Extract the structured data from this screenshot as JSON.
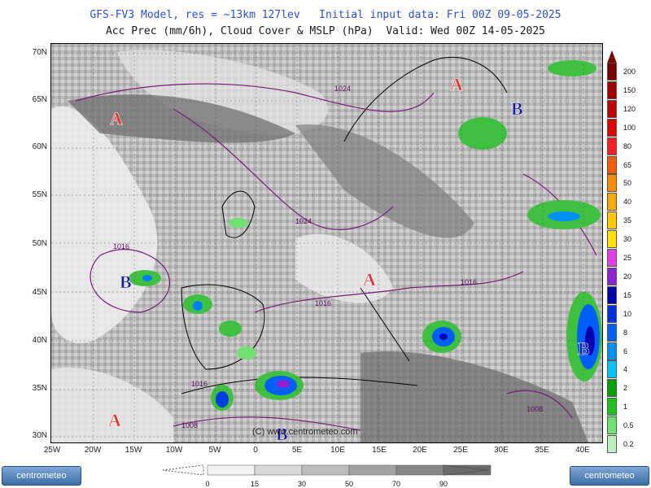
{
  "header": {
    "line1": "GFS-FV3 Model, res = ~13km 127lev   Initial input data: Fri 00Z 09-05-2025",
    "line2": "Acc Prec (mm/6h), Cloud Cover & MSLP (hPa)  Valid: Wed 00Z 14-05-2025"
  },
  "axes": {
    "lat_labels": [
      "70N",
      "65N",
      "60N",
      "55N",
      "50N",
      "45N",
      "40N",
      "35N",
      "30N"
    ],
    "lon_labels": [
      "25W",
      "20W",
      "15W",
      "10W",
      "5W",
      "0",
      "5E",
      "10E",
      "15E",
      "20E",
      "25E",
      "30E",
      "35E",
      "40E"
    ]
  },
  "pressure_systems": [
    {
      "label": "A",
      "type": "high",
      "color": "#e03030"
    },
    {
      "label": "A",
      "type": "high",
      "color": "#e03030"
    },
    {
      "label": "A",
      "type": "high",
      "color": "#e03030"
    },
    {
      "label": "A",
      "type": "high",
      "color": "#e03030"
    },
    {
      "label": "B",
      "type": "low",
      "color": "#1a1a9a"
    },
    {
      "label": "B",
      "type": "low",
      "color": "#1a1a9a"
    },
    {
      "label": "B",
      "type": "low",
      "color": "#1a1a9a"
    },
    {
      "label": "B",
      "type": "low",
      "color": "#1a1a9a"
    }
  ],
  "isobar_labels": [
    "1024",
    "1024",
    "1016",
    "1016",
    "1016",
    "1016",
    "1008",
    "1008"
  ],
  "precip_scale": {
    "unit": "mm/6h",
    "levels": [
      {
        "value": "200",
        "color": "#7a0000"
      },
      {
        "value": "150",
        "color": "#a00000"
      },
      {
        "value": "120",
        "color": "#c00000"
      },
      {
        "value": "100",
        "color": "#e00000"
      },
      {
        "value": "80",
        "color": "#ff2020"
      },
      {
        "value": "65",
        "color": "#ff5a00"
      },
      {
        "value": "50",
        "color": "#ff8c00"
      },
      {
        "value": "40",
        "color": "#ffaa00"
      },
      {
        "value": "35",
        "color": "#ffc800"
      },
      {
        "value": "30",
        "color": "#ffe000"
      },
      {
        "value": "25",
        "color": "#e040e0"
      },
      {
        "value": "20",
        "color": "#9020d0"
      },
      {
        "value": "15",
        "color": "#0000b0"
      },
      {
        "value": "10",
        "color": "#0030e0"
      },
      {
        "value": "8",
        "color": "#0060ff"
      },
      {
        "value": "6",
        "color": "#0090ff"
      },
      {
        "value": "4",
        "color": "#00c0ff"
      },
      {
        "value": "2",
        "color": "#00a000"
      },
      {
        "value": "1",
        "color": "#20c020"
      },
      {
        "value": "0.5",
        "color": "#70e070"
      },
      {
        "value": "0.2",
        "color": "#c0f0c0"
      }
    ]
  },
  "cloud_scale": {
    "ticks": [
      "0",
      "15",
      "30",
      "50",
      "70",
      "90"
    ],
    "colors": [
      "#f2f2f2",
      "#d8d8d8",
      "#bdbdbd",
      "#a2a2a2",
      "#878787",
      "#6c6c6c"
    ]
  },
  "watermark": "(C) www.centrometeo.com",
  "logo_left": "centrometeo",
  "logo_right": "centrometeo"
}
